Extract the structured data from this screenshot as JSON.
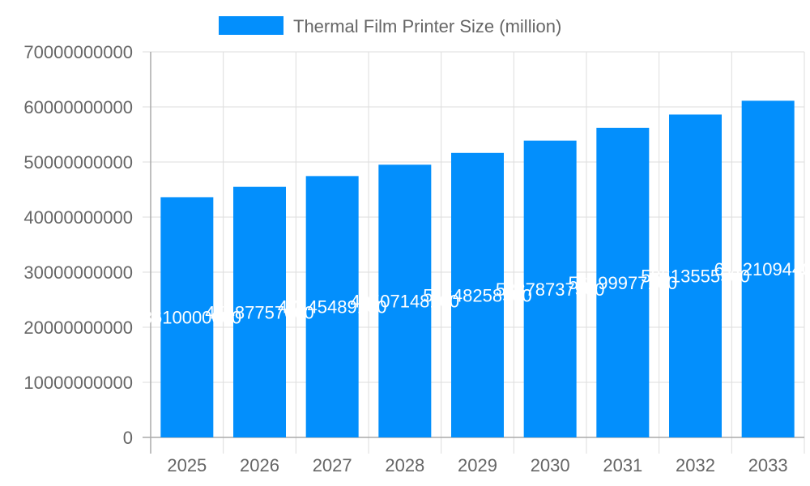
{
  "chart_data": {
    "type": "bar",
    "title": "",
    "xlabel": "",
    "ylabel": "",
    "categories": [
      "2025",
      "2026",
      "2027",
      "2028",
      "2029",
      "2030",
      "2031",
      "2032",
      "2033"
    ],
    "series": [
      {
        "name": "Thermal Film Printer Size (million)",
        "values": [
          43610000000,
          45487757000,
          47445489100,
          49507148100,
          51648258500,
          53878737500,
          56199977100,
          58613555500,
          61121094400
        ],
        "color": "#038ffc"
      }
    ],
    "ylim": [
      0,
      70000000000
    ],
    "yticks": [
      "0",
      "10000000000",
      "20000000000",
      "30000000000",
      "40000000000",
      "50000000000",
      "60000000000",
      "70000000000"
    ],
    "grid": true,
    "legend": "top",
    "data_labels": true
  }
}
